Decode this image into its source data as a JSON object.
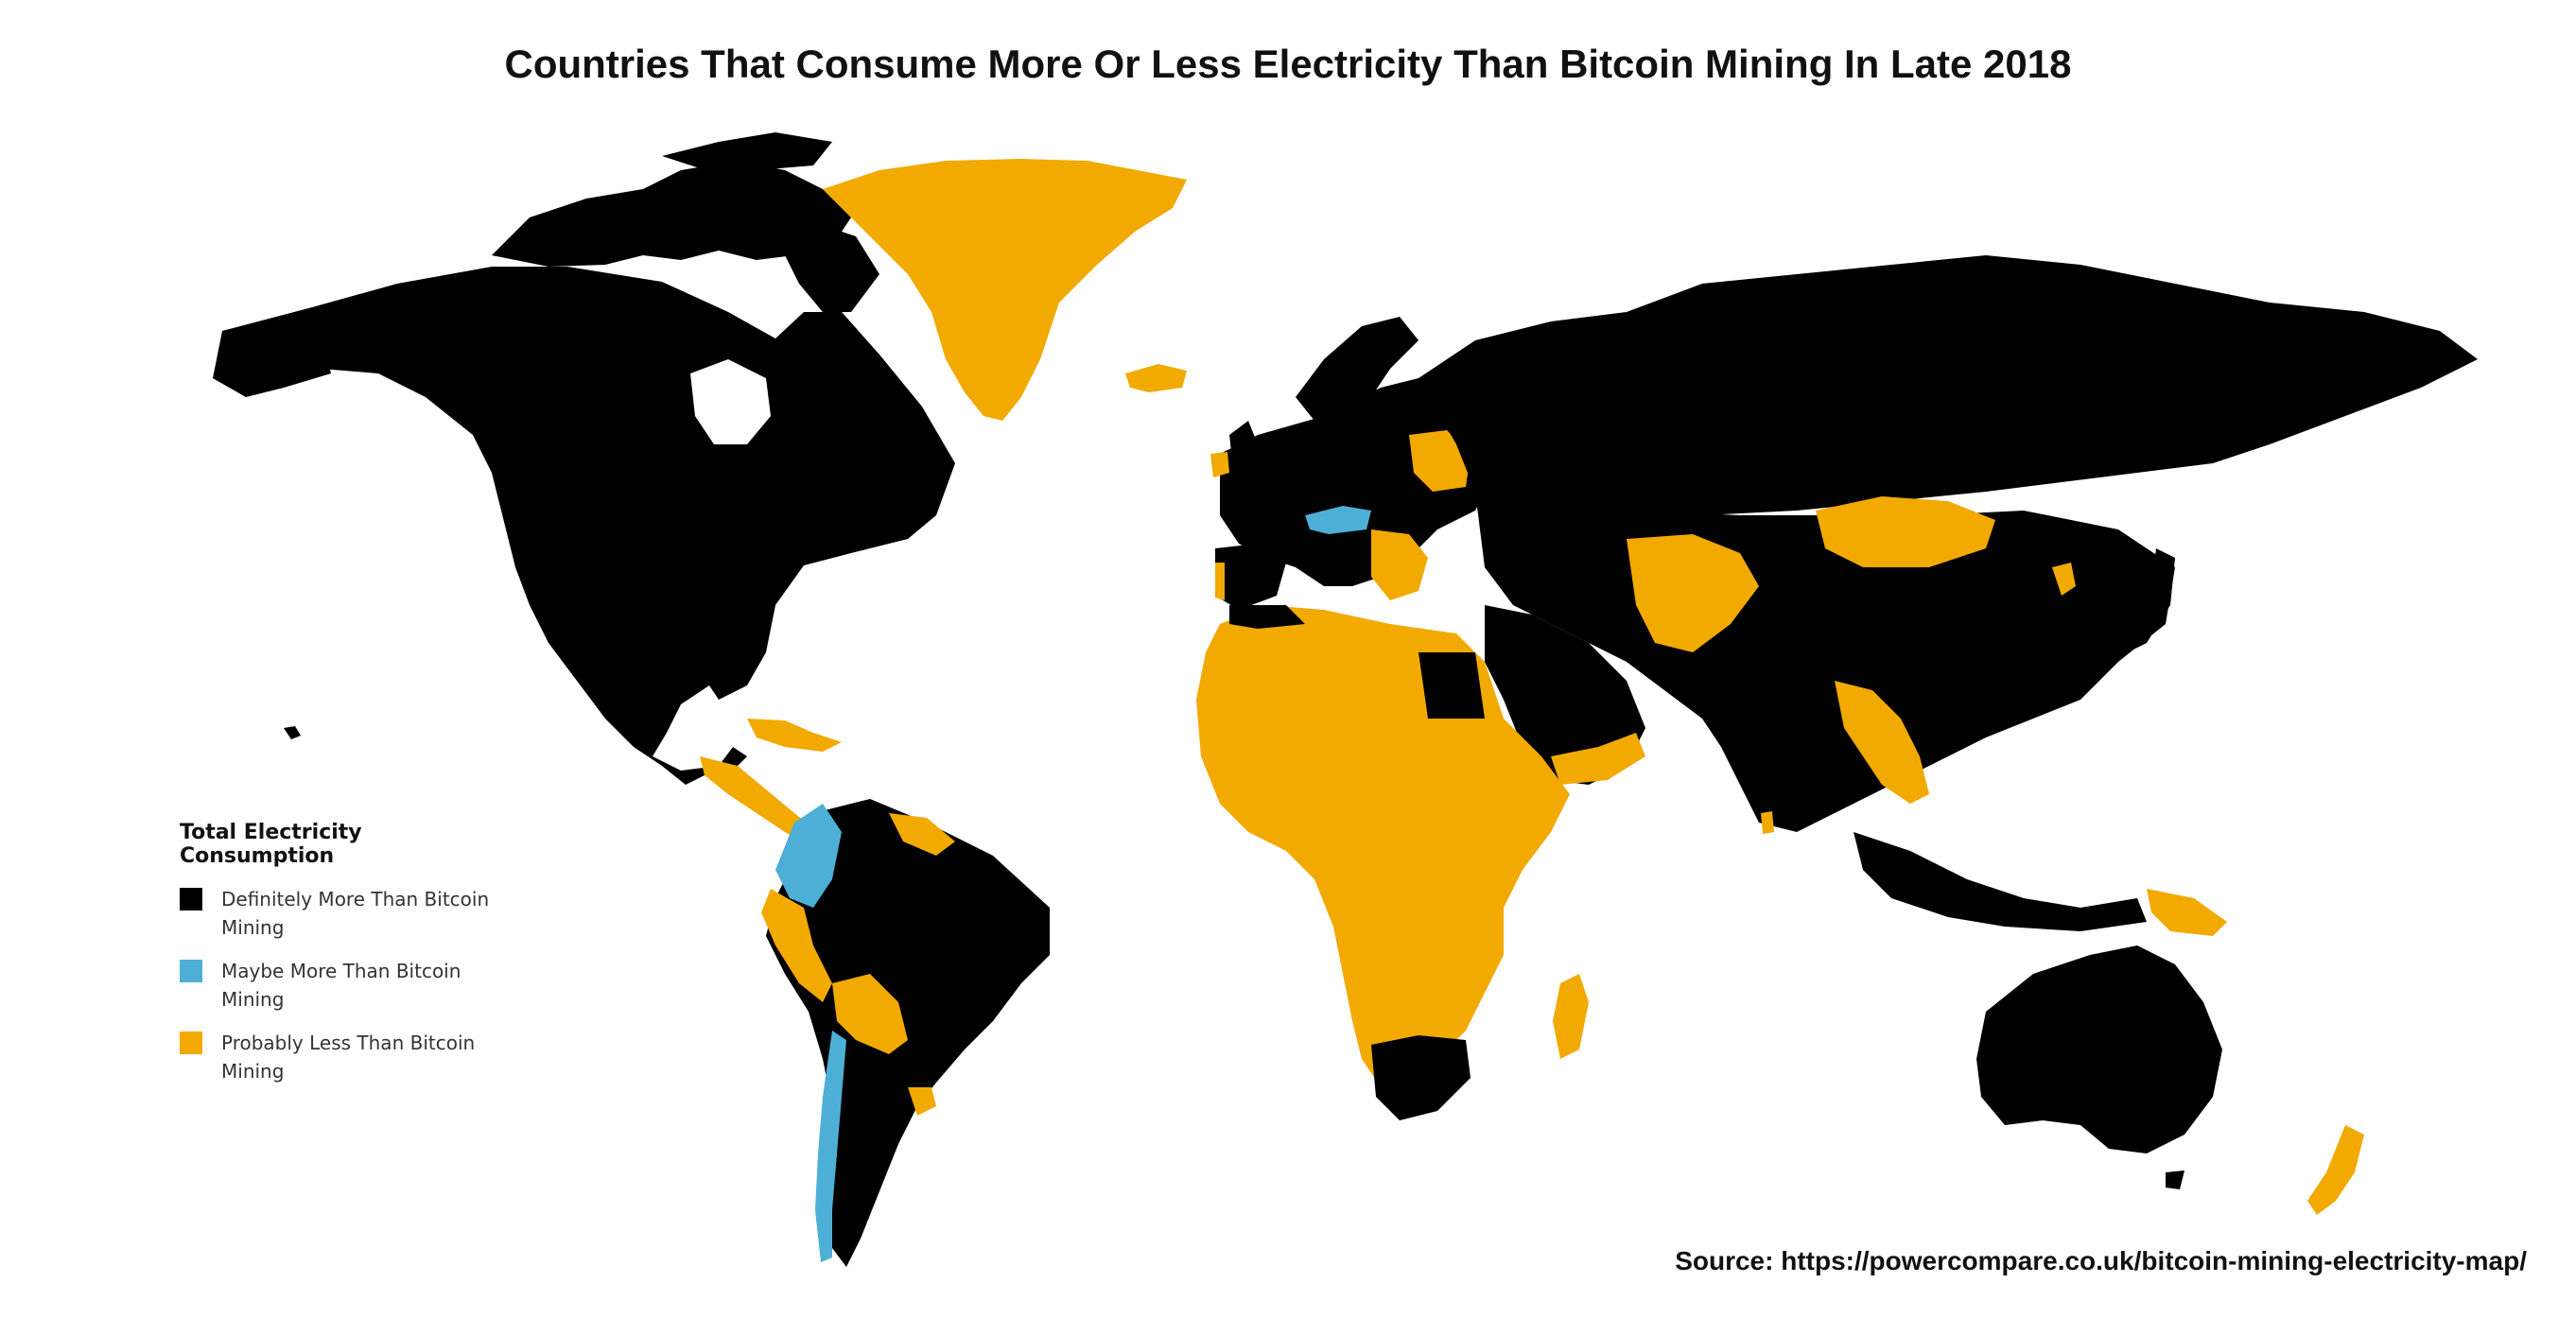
{
  "title": "Countries That Consume More Or Less Electricity Than Bitcoin Mining In Late 2018",
  "legend": {
    "title": "Total Electricity Consumption",
    "items": [
      {
        "label": "Definitely More Than Bitcoin Mining",
        "color": "#000000"
      },
      {
        "label": "Maybe More Than Bitcoin Mining",
        "color": "#4eafd6"
      },
      {
        "label": "Probably Less Than Bitcoin Mining",
        "color": "#f2a900"
      }
    ]
  },
  "source": "Source: https://powercompare.co.uk/bitcoin-mining-electricity-map/",
  "colors": {
    "more": "#000000",
    "maybe": "#4eafd6",
    "less": "#f2a900",
    "background": "#ffffff"
  }
}
